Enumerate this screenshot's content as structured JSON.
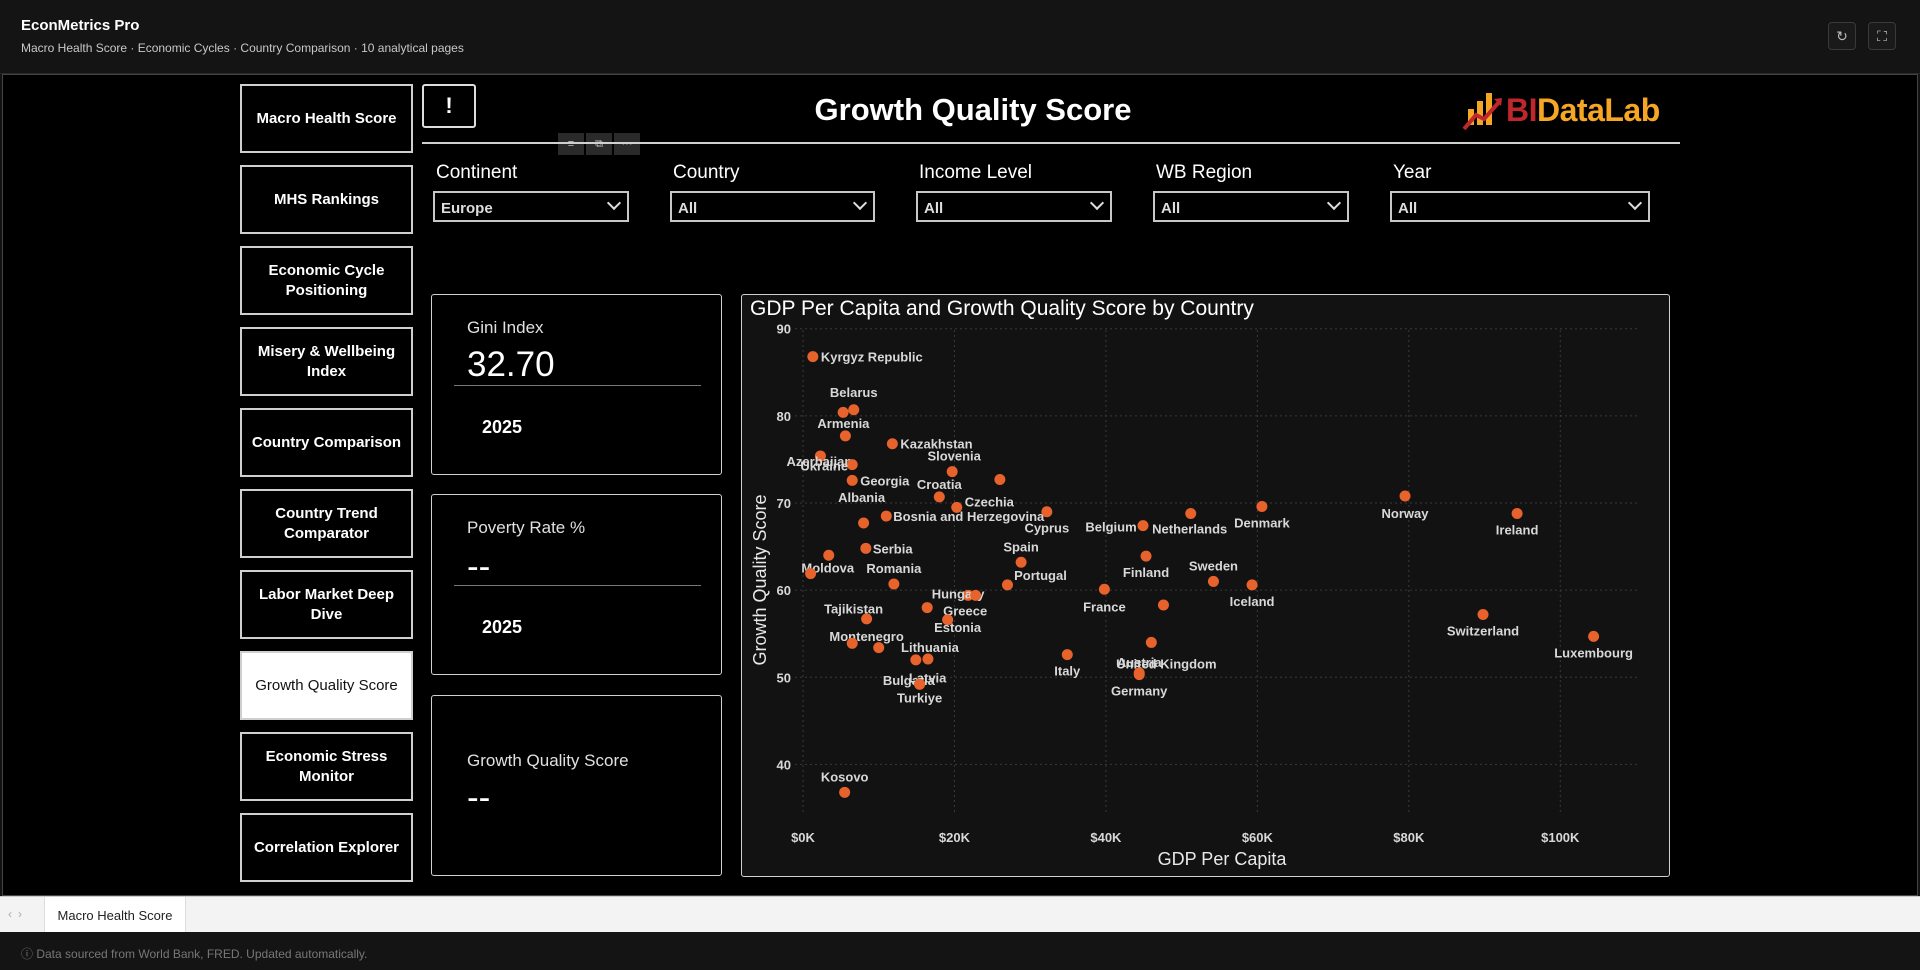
{
  "app": {
    "title": "EconMetrics Pro",
    "subtitle": "Macro Health Score · Economic Cycles · Country Comparison · 10 analytical pages",
    "refresh_icon": "refresh-icon",
    "fullscreen_icon": "fullscreen-icon"
  },
  "nav": [
    {
      "label": "Macro Health Score"
    },
    {
      "label": "MHS Rankings"
    },
    {
      "label": "Economic Cycle Positioning"
    },
    {
      "label": "Misery & Wellbeing Index"
    },
    {
      "label": "Country Comparison"
    },
    {
      "label": "Country Trend Comparator"
    },
    {
      "label": "Labor Market Deep Dive"
    },
    {
      "label": "Growth Quality Score",
      "active": true
    },
    {
      "label": "Economic Stress Monitor"
    },
    {
      "label": "Correlation Explorer"
    }
  ],
  "page": {
    "info_label": "!",
    "title": "Growth Quality Score",
    "logo_bi": "BI",
    "logo_rest": "DataLab"
  },
  "filters": [
    {
      "label": "Continent",
      "value": "Europe"
    },
    {
      "label": "Country",
      "value": "All"
    },
    {
      "label": "Income Level",
      "value": "All"
    },
    {
      "label": "WB Region",
      "value": "All"
    },
    {
      "label": "Year",
      "value": "All"
    }
  ],
  "cards": [
    {
      "label": "Gini Index",
      "value": "32.70",
      "year": "2025"
    },
    {
      "label": "Poverty Rate %",
      "value": "--",
      "year": "2025"
    },
    {
      "label": "Growth Quality Score",
      "value": "--"
    }
  ],
  "chart_data": {
    "type": "scatter",
    "title": "GDP Per Capita and Growth Quality Score by Country",
    "xlabel": "GDP Per Capita",
    "ylabel": "Growth Quality Score",
    "xlim": [
      0,
      110000
    ],
    "ylim": [
      35,
      91
    ],
    "xticks": [
      0,
      20000,
      40000,
      60000,
      80000,
      100000
    ],
    "xtick_labels": [
      "$0K",
      "$20K",
      "$40K",
      "$60K",
      "$80K",
      "$100K"
    ],
    "yticks": [
      40,
      50,
      60,
      70,
      80,
      90
    ],
    "grid": true,
    "point_color": "#e8622c",
    "points": [
      {
        "label": "Kyrgyz Republic",
        "x": 1300,
        "y": 86.8
      },
      {
        "label": "Belarus",
        "x": 6700,
        "y": 80.7
      },
      {
        "label": "",
        "x": 5300,
        "y": 80.4
      },
      {
        "label": "Armenia",
        "x": 5600,
        "y": 77.7
      },
      {
        "label": "Kazakhstan",
        "x": 11800,
        "y": 76.8
      },
      {
        "label": "Azerbaijan",
        "x": 2300,
        "y": 75.4
      },
      {
        "label": "Ukraine",
        "x": 6500,
        "y": 74.4
      },
      {
        "label": "Georgia",
        "x": 6500,
        "y": 72.6
      },
      {
        "label": "Slovenia",
        "x": 19700,
        "y": 73.6
      },
      {
        "label": "",
        "x": 26000,
        "y": 72.7
      },
      {
        "label": "Croatia",
        "x": 18000,
        "y": 70.7
      },
      {
        "label": "Czechia",
        "x": 20300,
        "y": 69.5
      },
      {
        "label": "Albania",
        "x": 8000,
        "y": 67.7
      },
      {
        "label": "Bosnia and Herzegovina",
        "x": 11000,
        "y": 68.5
      },
      {
        "label": "Cyprus",
        "x": 32200,
        "y": 69.0
      },
      {
        "label": "Belgium",
        "x": 44900,
        "y": 67.4
      },
      {
        "label": "Netherlands",
        "x": 51200,
        "y": 68.8
      },
      {
        "label": "Denmark",
        "x": 60600,
        "y": 69.6
      },
      {
        "label": "Norway",
        "x": 79500,
        "y": 70.8
      },
      {
        "label": "Ireland",
        "x": 94300,
        "y": 68.8
      },
      {
        "label": "Serbia",
        "x": 8300,
        "y": 64.8
      },
      {
        "label": "Moldova",
        "x": 3400,
        "y": 64.0
      },
      {
        "label": "Spain",
        "x": 28800,
        "y": 63.2
      },
      {
        "label": "Finland",
        "x": 45300,
        "y": 63.9
      },
      {
        "label": "Tajikistan",
        "x": 1000,
        "y": 61.9
      },
      {
        "label": "Romania",
        "x": 12000,
        "y": 60.7
      },
      {
        "label": "Hungary",
        "x": 21800,
        "y": 59.4
      },
      {
        "label": "",
        "x": 22800,
        "y": 59.4
      },
      {
        "label": "Portugal",
        "x": 27000,
        "y": 60.6
      },
      {
        "label": "Sweden",
        "x": 54200,
        "y": 61.0
      },
      {
        "label": "Iceland",
        "x": 59300,
        "y": 60.6
      },
      {
        "label": "France",
        "x": 39800,
        "y": 60.1
      },
      {
        "label": "Greece",
        "x": 16400,
        "y": 58.0
      },
      {
        "label": "Estonia",
        "x": 19100,
        "y": 56.6
      },
      {
        "label": "",
        "x": 47600,
        "y": 58.3
      },
      {
        "label": "United Kingdom",
        "x": 46000,
        "y": 54.0
      },
      {
        "label": "Montenegro",
        "x": 8400,
        "y": 56.7
      },
      {
        "label": "",
        "x": 6500,
        "y": 53.9
      },
      {
        "label": "",
        "x": 10000,
        "y": 53.4
      },
      {
        "label": "Switzerland",
        "x": 89800,
        "y": 57.2
      },
      {
        "label": "Luxembourg",
        "x": 104400,
        "y": 54.7
      },
      {
        "label": "Bulgaria",
        "x": 14900,
        "y": 52.0
      },
      {
        "label": "Lithuania",
        "x": 16500,
        "y": 52.1
      },
      {
        "label": "Italy",
        "x": 34900,
        "y": 52.6
      },
      {
        "label": "Austria",
        "x": 44400,
        "y": 50.5
      },
      {
        "label": "Latvia",
        "x": 15400,
        "y": 49.2
      },
      {
        "label": "Turkiye",
        "x": 15400,
        "y": 49.2
      },
      {
        "label": "Germany",
        "x": 44400,
        "y": 50.3
      },
      {
        "label": "Kosovo",
        "x": 5500,
        "y": 36.8
      }
    ]
  },
  "tabs": [
    {
      "label": "Macro Health Score"
    }
  ],
  "footer": {
    "text": "ⓘ  Data sourced from World Bank, FRED. Updated automatically."
  }
}
